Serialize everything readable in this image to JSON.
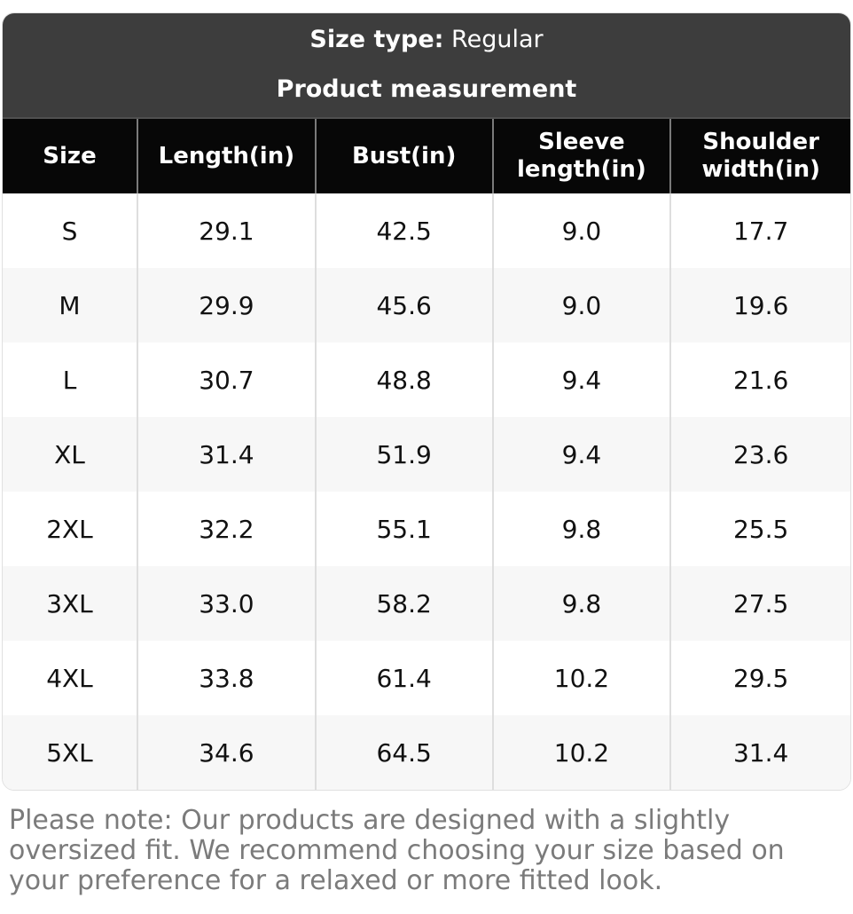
{
  "banner": {
    "size_type_label": "Size type:",
    "size_type_value": "Regular",
    "title": "Product measurement"
  },
  "table": {
    "columns": [
      "Size",
      "Length(in)",
      "Bust(in)",
      "Sleeve length(in)",
      "Shoulder width(in)"
    ],
    "rows": [
      [
        "S",
        "29.1",
        "42.5",
        "9.0",
        "17.7"
      ],
      [
        "M",
        "29.9",
        "45.6",
        "9.0",
        "19.6"
      ],
      [
        "L",
        "30.7",
        "48.8",
        "9.4",
        "21.6"
      ],
      [
        "XL",
        "31.4",
        "51.9",
        "9.4",
        "23.6"
      ],
      [
        "2XL",
        "32.2",
        "55.1",
        "9.8",
        "25.5"
      ],
      [
        "3XL",
        "33.0",
        "58.2",
        "9.8",
        "27.5"
      ],
      [
        "4XL",
        "33.8",
        "61.4",
        "10.2",
        "29.5"
      ],
      [
        "5XL",
        "34.6",
        "64.5",
        "10.2",
        "31.4"
      ]
    ]
  },
  "note": "Please note: Our products are designed with a slightly oversized fit. We recommend choosing your size based on your preference for a relaxed or more fitted look.",
  "colors": {
    "banner_bg": "#3d3d3d",
    "header_bg": "#070707",
    "row_alt_bg": "#f7f7f7",
    "grid_line": "#dedede",
    "header_grid_line": "#7a7a7a",
    "note_text": "#7b7b7b"
  }
}
